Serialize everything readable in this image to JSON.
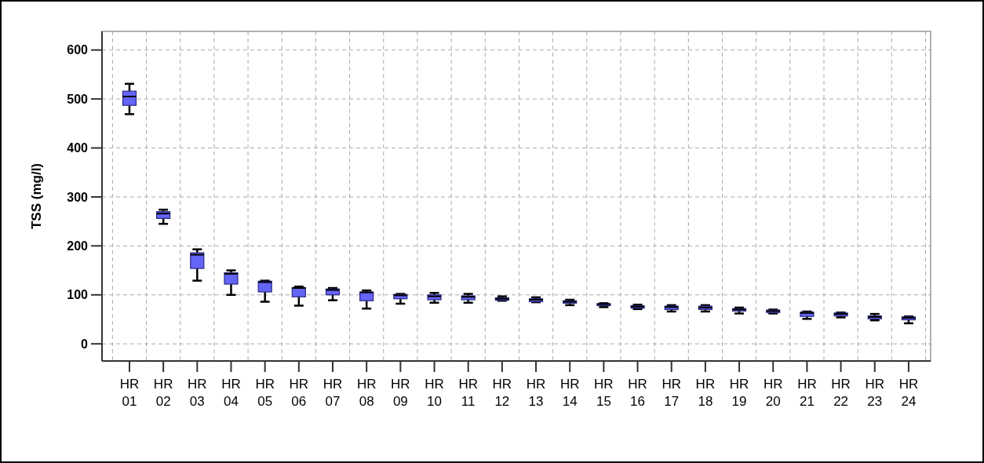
{
  "chart_data": {
    "type": "box",
    "ylabel": "TSS (mg/l)",
    "categories": [
      "HR\n01",
      "HR\n02",
      "HR\n03",
      "HR\n04",
      "HR\n05",
      "HR\n06",
      "HR\n07",
      "HR\n08",
      "HR\n09",
      "HR\n10",
      "HR\n11",
      "HR\n12",
      "HR\n13",
      "HR\n14",
      "HR\n15",
      "HR\n16",
      "HR\n17",
      "HR\n18",
      "HR\n19",
      "HR\n20",
      "HR\n21",
      "HR\n22",
      "HR\n23",
      "HR\n24"
    ],
    "series": [
      {
        "color": "#6464f8",
        "boxes": [
          {
            "low": 469,
            "q1": 487,
            "median": 505,
            "q3": 516,
            "high": 531
          },
          {
            "low": 245,
            "q1": 256,
            "median": 266,
            "q3": 270,
            "high": 274
          },
          {
            "low": 129,
            "q1": 154,
            "median": 182,
            "q3": 186,
            "high": 193
          },
          {
            "low": 100,
            "q1": 122,
            "median": 143,
            "q3": 145,
            "high": 150
          },
          {
            "low": 86,
            "q1": 106,
            "median": 126,
            "q3": 128,
            "high": 129
          },
          {
            "low": 78,
            "q1": 96,
            "median": 114,
            "q3": 115,
            "high": 117
          },
          {
            "low": 89,
            "q1": 100,
            "median": 110,
            "q3": 112,
            "high": 114
          },
          {
            "low": 72,
            "q1": 88,
            "median": 105,
            "q3": 106,
            "high": 109
          },
          {
            "low": 82,
            "q1": 92,
            "median": 99,
            "q3": 101,
            "high": 102
          },
          {
            "low": 84,
            "q1": 90,
            "median": 97,
            "q3": 100,
            "high": 104
          },
          {
            "low": 84,
            "q1": 90,
            "median": 96,
            "q3": 98,
            "high": 102
          },
          {
            "low": 88,
            "q1": 89,
            "median": 92,
            "q3": 94,
            "high": 97
          },
          {
            "low": 85,
            "q1": 86,
            "median": 90,
            "q3": 92,
            "high": 95
          },
          {
            "low": 79,
            "q1": 83,
            "median": 86,
            "q3": 88,
            "high": 90
          },
          {
            "low": 75,
            "q1": 78,
            "median": 81,
            "q3": 82,
            "high": 83
          },
          {
            "low": 71,
            "q1": 73,
            "median": 76,
            "q3": 78,
            "high": 80
          },
          {
            "low": 66,
            "q1": 70,
            "median": 75,
            "q3": 77,
            "high": 79
          },
          {
            "low": 66,
            "q1": 70,
            "median": 74,
            "q3": 77,
            "high": 79
          },
          {
            "low": 62,
            "q1": 67,
            "median": 70,
            "q3": 72,
            "high": 74
          },
          {
            "low": 62,
            "q1": 64,
            "median": 67,
            "q3": 69,
            "high": 70
          },
          {
            "low": 51,
            "q1": 56,
            "median": 63,
            "q3": 65,
            "high": 66
          },
          {
            "low": 54,
            "q1": 57,
            "median": 61,
            "q3": 63,
            "high": 64
          },
          {
            "low": 48,
            "q1": 51,
            "median": 55,
            "q3": 57,
            "high": 61
          },
          {
            "low": 42,
            "q1": 49,
            "median": 53,
            "q3": 55,
            "high": 56
          }
        ]
      }
    ],
    "ylim": [
      -35,
      638
    ],
    "yticks": [
      0,
      100,
      200,
      300,
      400,
      500,
      600
    ],
    "grid": true
  }
}
